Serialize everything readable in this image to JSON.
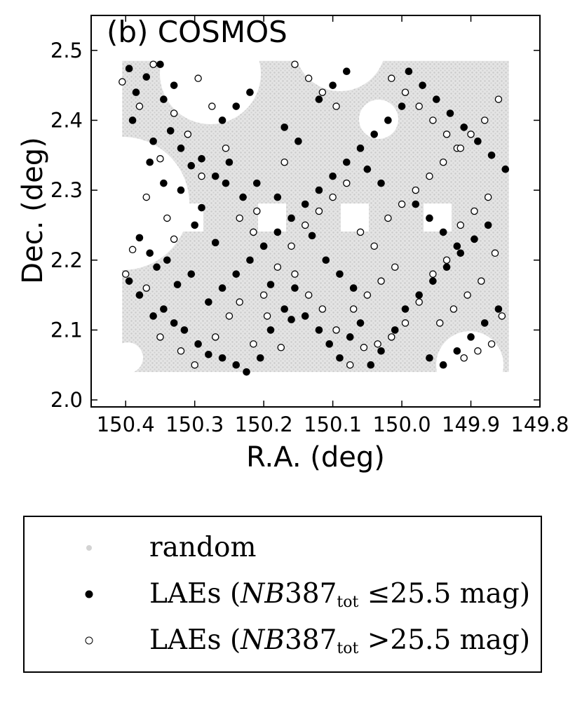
{
  "chart_data": {
    "type": "scatter",
    "title": "(b) COSMOS",
    "xlabel": "R.A. (deg)",
    "ylabel": "Dec. (deg)",
    "xlim": [
      150.45,
      149.8
    ],
    "ylim": [
      1.99,
      2.55
    ],
    "x_reversed": true,
    "xticks": [
      "150.4",
      "150.3",
      "150.2",
      "150.1",
      "150.0",
      "149.9",
      "149.8"
    ],
    "yticks": [
      "2.0",
      "2.1",
      "2.2",
      "2.3",
      "2.4",
      "2.5"
    ],
    "grid": false,
    "legend_placement": "below",
    "series": [
      {
        "name": "random",
        "color": "#d3d3d3",
        "marker": "small-dot",
        "footprint": {
          "ra_range": [
            150.405,
            149.845
          ],
          "dec_range": [
            2.04,
            2.485
          ]
        }
      },
      {
        "name": "LAEs (NB387tot ≤25.5 mag)",
        "color": "#000000",
        "marker": "filled-circle",
        "points": [
          [
            150.395,
            2.474
          ],
          [
            150.37,
            2.462
          ],
          [
            150.35,
            2.48
          ],
          [
            150.33,
            2.45
          ],
          [
            150.385,
            2.44
          ],
          [
            150.345,
            2.43
          ],
          [
            150.39,
            2.4
          ],
          [
            150.36,
            2.37
          ],
          [
            150.335,
            2.385
          ],
          [
            150.32,
            2.36
          ],
          [
            150.305,
            2.335
          ],
          [
            150.29,
            2.345
          ],
          [
            150.27,
            2.32
          ],
          [
            150.255,
            2.31
          ],
          [
            150.23,
            2.29
          ],
          [
            150.32,
            2.3
          ],
          [
            150.29,
            2.275
          ],
          [
            150.345,
            2.31
          ],
          [
            150.365,
            2.34
          ],
          [
            150.38,
            2.232
          ],
          [
            150.365,
            2.21
          ],
          [
            150.355,
            2.19
          ],
          [
            150.34,
            2.2
          ],
          [
            150.325,
            2.165
          ],
          [
            150.305,
            2.18
          ],
          [
            150.395,
            2.17
          ],
          [
            150.38,
            2.15
          ],
          [
            150.36,
            2.12
          ],
          [
            150.345,
            2.13
          ],
          [
            150.33,
            2.11
          ],
          [
            150.315,
            2.1
          ],
          [
            150.295,
            2.08
          ],
          [
            150.28,
            2.065
          ],
          [
            150.26,
            2.06
          ],
          [
            150.24,
            2.05
          ],
          [
            150.225,
            2.04
          ],
          [
            150.205,
            2.06
          ],
          [
            150.19,
            2.1
          ],
          [
            150.17,
            2.13
          ],
          [
            150.155,
            2.16
          ],
          [
            150.14,
            2.12
          ],
          [
            150.12,
            2.1
          ],
          [
            150.105,
            2.08
          ],
          [
            150.09,
            2.06
          ],
          [
            150.075,
            2.09
          ],
          [
            150.06,
            2.11
          ],
          [
            150.045,
            2.05
          ],
          [
            150.03,
            2.07
          ],
          [
            150.01,
            2.1
          ],
          [
            149.995,
            2.13
          ],
          [
            149.975,
            2.15
          ],
          [
            149.955,
            2.17
          ],
          [
            149.935,
            2.19
          ],
          [
            149.915,
            2.21
          ],
          [
            149.895,
            2.23
          ],
          [
            149.875,
            2.25
          ],
          [
            149.86,
            2.13
          ],
          [
            149.88,
            2.11
          ],
          [
            149.9,
            2.09
          ],
          [
            149.92,
            2.07
          ],
          [
            149.94,
            2.05
          ],
          [
            149.96,
            2.06
          ],
          [
            149.85,
            2.33
          ],
          [
            149.87,
            2.35
          ],
          [
            149.89,
            2.37
          ],
          [
            149.91,
            2.39
          ],
          [
            149.93,
            2.41
          ],
          [
            149.95,
            2.43
          ],
          [
            149.97,
            2.45
          ],
          [
            149.99,
            2.47
          ],
          [
            150.0,
            2.42
          ],
          [
            150.02,
            2.4
          ],
          [
            150.04,
            2.38
          ],
          [
            150.06,
            2.36
          ],
          [
            150.08,
            2.34
          ],
          [
            150.1,
            2.32
          ],
          [
            150.12,
            2.3
          ],
          [
            150.14,
            2.28
          ],
          [
            150.16,
            2.26
          ],
          [
            150.18,
            2.24
          ],
          [
            150.2,
            2.22
          ],
          [
            150.22,
            2.2
          ],
          [
            150.24,
            2.18
          ],
          [
            150.26,
            2.16
          ],
          [
            150.28,
            2.14
          ],
          [
            150.08,
            2.47
          ],
          [
            150.1,
            2.45
          ],
          [
            150.12,
            2.43
          ],
          [
            150.22,
            2.44
          ],
          [
            150.24,
            2.42
          ],
          [
            150.26,
            2.4
          ],
          [
            150.17,
            2.39
          ],
          [
            150.15,
            2.37
          ],
          [
            150.05,
            2.33
          ],
          [
            150.03,
            2.31
          ],
          [
            149.98,
            2.28
          ],
          [
            149.96,
            2.26
          ],
          [
            149.94,
            2.24
          ],
          [
            149.92,
            2.22
          ],
          [
            150.11,
            2.2
          ],
          [
            150.09,
            2.18
          ],
          [
            150.07,
            2.16
          ],
          [
            150.13,
            2.235
          ],
          [
            150.18,
            2.29
          ],
          [
            150.21,
            2.31
          ],
          [
            150.25,
            2.34
          ],
          [
            150.3,
            2.25
          ],
          [
            150.27,
            2.225
          ],
          [
            150.19,
            2.165
          ],
          [
            150.16,
            2.115
          ]
        ]
      },
      {
        "name": "LAEs (NB387tot >25.5 mag)",
        "color": "#ffffff",
        "edgecolor": "#000000",
        "marker": "open-circle",
        "points": [
          [
            150.405,
            2.455
          ],
          [
            150.38,
            2.42
          ],
          [
            150.36,
            2.48
          ],
          [
            150.33,
            2.41
          ],
          [
            150.31,
            2.38
          ],
          [
            150.35,
            2.345
          ],
          [
            150.37,
            2.29
          ],
          [
            150.34,
            2.26
          ],
          [
            150.33,
            2.23
          ],
          [
            150.39,
            2.215
          ],
          [
            150.4,
            2.18
          ],
          [
            150.37,
            2.16
          ],
          [
            150.35,
            2.09
          ],
          [
            150.32,
            2.07
          ],
          [
            150.3,
            2.05
          ],
          [
            150.27,
            2.09
          ],
          [
            150.25,
            2.12
          ],
          [
            150.235,
            2.14
          ],
          [
            150.215,
            2.08
          ],
          [
            150.2,
            2.15
          ],
          [
            150.18,
            2.19
          ],
          [
            150.16,
            2.22
          ],
          [
            150.14,
            2.25
          ],
          [
            150.12,
            2.27
          ],
          [
            150.1,
            2.29
          ],
          [
            150.08,
            2.31
          ],
          [
            150.06,
            2.24
          ],
          [
            150.04,
            2.22
          ],
          [
            150.02,
            2.26
          ],
          [
            150.0,
            2.28
          ],
          [
            149.98,
            2.3
          ],
          [
            149.96,
            2.32
          ],
          [
            149.94,
            2.34
          ],
          [
            149.92,
            2.36
          ],
          [
            149.9,
            2.38
          ],
          [
            149.88,
            2.4
          ],
          [
            149.86,
            2.43
          ],
          [
            149.875,
            2.29
          ],
          [
            149.895,
            2.27
          ],
          [
            149.915,
            2.25
          ],
          [
            149.935,
            2.2
          ],
          [
            149.955,
            2.18
          ],
          [
            149.975,
            2.14
          ],
          [
            149.995,
            2.11
          ],
          [
            150.015,
            2.09
          ],
          [
            150.035,
            2.08
          ],
          [
            150.055,
            2.075
          ],
          [
            150.075,
            2.05
          ],
          [
            150.095,
            2.1
          ],
          [
            150.115,
            2.13
          ],
          [
            150.135,
            2.15
          ],
          [
            150.155,
            2.18
          ],
          [
            150.175,
            2.075
          ],
          [
            150.195,
            2.12
          ],
          [
            150.215,
            2.24
          ],
          [
            150.235,
            2.26
          ],
          [
            150.255,
            2.36
          ],
          [
            150.275,
            2.42
          ],
          [
            150.295,
            2.46
          ],
          [
            150.155,
            2.48
          ],
          [
            150.135,
            2.46
          ],
          [
            150.115,
            2.44
          ],
          [
            150.095,
            2.42
          ],
          [
            150.015,
            2.46
          ],
          [
            149.995,
            2.44
          ],
          [
            149.975,
            2.42
          ],
          [
            149.955,
            2.4
          ],
          [
            149.935,
            2.38
          ],
          [
            149.915,
            2.36
          ],
          [
            149.865,
            2.21
          ],
          [
            149.885,
            2.17
          ],
          [
            149.905,
            2.15
          ],
          [
            149.925,
            2.13
          ],
          [
            149.945,
            2.11
          ],
          [
            149.855,
            2.12
          ],
          [
            149.87,
            2.08
          ],
          [
            149.89,
            2.07
          ],
          [
            149.91,
            2.06
          ],
          [
            150.01,
            2.19
          ],
          [
            150.03,
            2.17
          ],
          [
            150.05,
            2.15
          ],
          [
            150.07,
            2.13
          ],
          [
            150.29,
            2.32
          ],
          [
            150.21,
            2.27
          ],
          [
            150.17,
            2.34
          ]
        ]
      }
    ]
  },
  "legend": {
    "items": [
      {
        "label": "random"
      },
      {
        "prefix": "LAEs (",
        "var": "NB",
        "num": "387",
        "sub": "tot",
        "suffix": " ≤25.5 mag)"
      },
      {
        "prefix": "LAEs (",
        "var": "NB",
        "num": "387",
        "sub": "tot",
        "suffix": " >25.5 mag)"
      }
    ]
  }
}
